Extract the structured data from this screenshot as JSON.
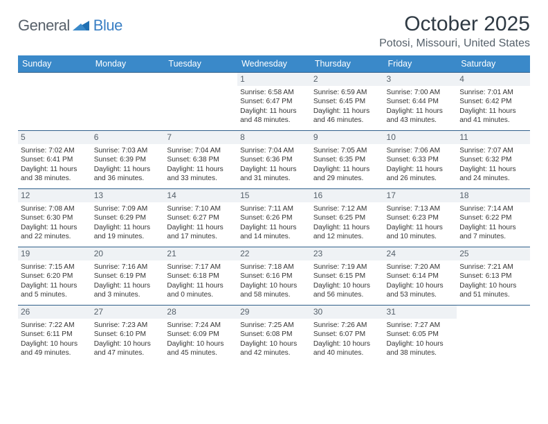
{
  "logo": {
    "text1": "General",
    "text2": "Blue"
  },
  "title": "October 2025",
  "location": "Potosi, Missouri, United States",
  "colors": {
    "header_bg": "#3a89c9",
    "header_fg": "#ffffff",
    "row_border": "#2e5e8a",
    "daynum_bg": "#eff2f5",
    "daynum_fg": "#55606a",
    "page_bg": "#ffffff",
    "text": "#333333",
    "logo_gray": "#57606a",
    "logo_blue": "#3a7fc4"
  },
  "day_headers": [
    "Sunday",
    "Monday",
    "Tuesday",
    "Wednesday",
    "Thursday",
    "Friday",
    "Saturday"
  ],
  "weeks": [
    [
      null,
      null,
      null,
      {
        "n": "1",
        "sr": "6:58 AM",
        "ss": "6:47 PM",
        "dl": "11 hours and 48 minutes."
      },
      {
        "n": "2",
        "sr": "6:59 AM",
        "ss": "6:45 PM",
        "dl": "11 hours and 46 minutes."
      },
      {
        "n": "3",
        "sr": "7:00 AM",
        "ss": "6:44 PM",
        "dl": "11 hours and 43 minutes."
      },
      {
        "n": "4",
        "sr": "7:01 AM",
        "ss": "6:42 PM",
        "dl": "11 hours and 41 minutes."
      }
    ],
    [
      {
        "n": "5",
        "sr": "7:02 AM",
        "ss": "6:41 PM",
        "dl": "11 hours and 38 minutes."
      },
      {
        "n": "6",
        "sr": "7:03 AM",
        "ss": "6:39 PM",
        "dl": "11 hours and 36 minutes."
      },
      {
        "n": "7",
        "sr": "7:04 AM",
        "ss": "6:38 PM",
        "dl": "11 hours and 33 minutes."
      },
      {
        "n": "8",
        "sr": "7:04 AM",
        "ss": "6:36 PM",
        "dl": "11 hours and 31 minutes."
      },
      {
        "n": "9",
        "sr": "7:05 AM",
        "ss": "6:35 PM",
        "dl": "11 hours and 29 minutes."
      },
      {
        "n": "10",
        "sr": "7:06 AM",
        "ss": "6:33 PM",
        "dl": "11 hours and 26 minutes."
      },
      {
        "n": "11",
        "sr": "7:07 AM",
        "ss": "6:32 PM",
        "dl": "11 hours and 24 minutes."
      }
    ],
    [
      {
        "n": "12",
        "sr": "7:08 AM",
        "ss": "6:30 PM",
        "dl": "11 hours and 22 minutes."
      },
      {
        "n": "13",
        "sr": "7:09 AM",
        "ss": "6:29 PM",
        "dl": "11 hours and 19 minutes."
      },
      {
        "n": "14",
        "sr": "7:10 AM",
        "ss": "6:27 PM",
        "dl": "11 hours and 17 minutes."
      },
      {
        "n": "15",
        "sr": "7:11 AM",
        "ss": "6:26 PM",
        "dl": "11 hours and 14 minutes."
      },
      {
        "n": "16",
        "sr": "7:12 AM",
        "ss": "6:25 PM",
        "dl": "11 hours and 12 minutes."
      },
      {
        "n": "17",
        "sr": "7:13 AM",
        "ss": "6:23 PM",
        "dl": "11 hours and 10 minutes."
      },
      {
        "n": "18",
        "sr": "7:14 AM",
        "ss": "6:22 PM",
        "dl": "11 hours and 7 minutes."
      }
    ],
    [
      {
        "n": "19",
        "sr": "7:15 AM",
        "ss": "6:20 PM",
        "dl": "11 hours and 5 minutes."
      },
      {
        "n": "20",
        "sr": "7:16 AM",
        "ss": "6:19 PM",
        "dl": "11 hours and 3 minutes."
      },
      {
        "n": "21",
        "sr": "7:17 AM",
        "ss": "6:18 PM",
        "dl": "11 hours and 0 minutes."
      },
      {
        "n": "22",
        "sr": "7:18 AM",
        "ss": "6:16 PM",
        "dl": "10 hours and 58 minutes."
      },
      {
        "n": "23",
        "sr": "7:19 AM",
        "ss": "6:15 PM",
        "dl": "10 hours and 56 minutes."
      },
      {
        "n": "24",
        "sr": "7:20 AM",
        "ss": "6:14 PM",
        "dl": "10 hours and 53 minutes."
      },
      {
        "n": "25",
        "sr": "7:21 AM",
        "ss": "6:13 PM",
        "dl": "10 hours and 51 minutes."
      }
    ],
    [
      {
        "n": "26",
        "sr": "7:22 AM",
        "ss": "6:11 PM",
        "dl": "10 hours and 49 minutes."
      },
      {
        "n": "27",
        "sr": "7:23 AM",
        "ss": "6:10 PM",
        "dl": "10 hours and 47 minutes."
      },
      {
        "n": "28",
        "sr": "7:24 AM",
        "ss": "6:09 PM",
        "dl": "10 hours and 45 minutes."
      },
      {
        "n": "29",
        "sr": "7:25 AM",
        "ss": "6:08 PM",
        "dl": "10 hours and 42 minutes."
      },
      {
        "n": "30",
        "sr": "7:26 AM",
        "ss": "6:07 PM",
        "dl": "10 hours and 40 minutes."
      },
      {
        "n": "31",
        "sr": "7:27 AM",
        "ss": "6:05 PM",
        "dl": "10 hours and 38 minutes."
      },
      null
    ]
  ],
  "labels": {
    "sunrise": "Sunrise:",
    "sunset": "Sunset:",
    "daylight": "Daylight:"
  }
}
